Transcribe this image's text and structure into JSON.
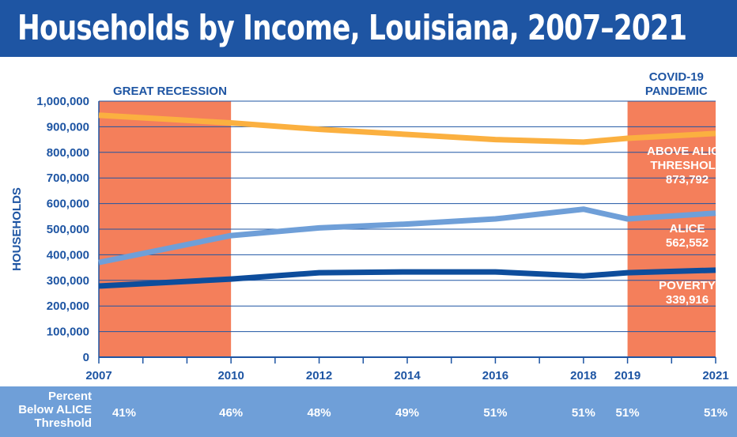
{
  "title": "Households by Income, Louisiana, 2007–2021",
  "colors": {
    "title_bg": "#1e55a3",
    "navy": "#1e55a3",
    "shade": "#f47f5b",
    "above_alice": "#fbb040",
    "alice": "#6f9fd8",
    "poverty": "#0d4d9c",
    "percent_bar": "#6f9fd8"
  },
  "shaded_periods": [
    {
      "label_lines": [
        "GREAT RECESSION"
      ],
      "start": 2007,
      "end": 2010
    },
    {
      "label_lines": [
        "COVID-19",
        "PANDEMIC"
      ],
      "start": 2019,
      "end": 2021
    }
  ],
  "chart_data": {
    "type": "line",
    "ylabel": "HOUSEHOLDS",
    "xlabel": "",
    "ylim": [
      0,
      1000000
    ],
    "xlim": [
      2007,
      2021
    ],
    "y_ticks": [
      0,
      100000,
      200000,
      300000,
      400000,
      500000,
      600000,
      700000,
      800000,
      900000,
      1000000
    ],
    "y_tick_labels": [
      "0",
      "100,000",
      "200,000",
      "300,000",
      "400,000",
      "500,000",
      "600,000",
      "700,000",
      "800,000",
      "900,000",
      "1,000,000"
    ],
    "x_tick_marks": [
      2007,
      2008,
      2009,
      2010,
      2011,
      2012,
      2013,
      2014,
      2015,
      2016,
      2017,
      2018,
      2019,
      2020,
      2021
    ],
    "x_tick_labels": [
      "2007",
      "2010",
      "2012",
      "2014",
      "2016",
      "2018",
      "2019",
      "2021"
    ],
    "x_label_years": [
      2007,
      2010,
      2012,
      2014,
      2016,
      2018,
      2019,
      2021
    ],
    "grid": true,
    "x": [
      2007,
      2010,
      2012,
      2014,
      2016,
      2018,
      2019,
      2021
    ],
    "series": [
      {
        "key": "above",
        "label_lines": [
          "ABOVE ALICE",
          "THRESHOLD",
          "873,792"
        ],
        "values": [
          945000,
          915000,
          890000,
          870000,
          850000,
          840000,
          855000,
          873792
        ]
      },
      {
        "key": "alice",
        "label_lines": [
          "ALICE",
          "562,552"
        ],
        "values": [
          370000,
          475000,
          505000,
          520000,
          540000,
          578000,
          540000,
          562552
        ]
      },
      {
        "key": "poverty",
        "label_lines": [
          "POVERTY",
          "339,916"
        ],
        "values": [
          278000,
          305000,
          330000,
          333000,
          333000,
          317000,
          330000,
          339916
        ]
      }
    ]
  },
  "percent_below": {
    "label_lines": [
      "Percent",
      "Below ALICE",
      "Threshold"
    ],
    "years": [
      2007,
      2010,
      2012,
      2014,
      2016,
      2018,
      2019,
      2021
    ],
    "values": [
      "41%",
      "46%",
      "48%",
      "49%",
      "51%",
      "51%",
      "51%",
      "51%"
    ]
  }
}
